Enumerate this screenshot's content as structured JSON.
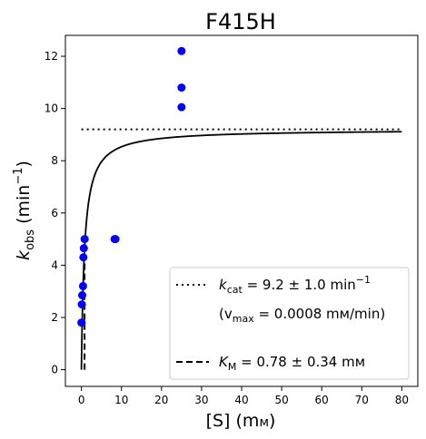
{
  "chart_data": {
    "type": "scatter",
    "title": "F415H",
    "xlabel": {
      "main": "[S] (m",
      "unit": "м",
      "close": ")"
    },
    "ylabel": {
      "main": "k",
      "sub": "obs",
      "unit": " (min",
      "sup": "−1",
      "close": ")"
    },
    "xlim": [
      -4,
      84
    ],
    "ylim": [
      -0.64,
      12.8
    ],
    "xticks": [
      0,
      10,
      20,
      30,
      40,
      50,
      60,
      70,
      80
    ],
    "yticks": [
      0,
      2,
      4,
      6,
      8,
      10,
      12
    ],
    "grid": false,
    "legend_position": "lower-right",
    "colors": {
      "points": "#0000ff",
      "fit": "#000000",
      "axis": "#000000"
    },
    "points": {
      "x": [
        0.0,
        0.05,
        0.1,
        0.2,
        0.4,
        0.5,
        0.6,
        0.8,
        8.3,
        8.5,
        25.0,
        25.0,
        25.0
      ],
      "y": [
        1.8,
        1.8,
        2.5,
        2.85,
        3.2,
        4.3,
        4.65,
        5.0,
        5.0,
        5.0,
        10.05,
        10.8,
        12.2
      ]
    },
    "fit": {
      "kcat": 9.2,
      "km": 0.78,
      "x_start": 0.0,
      "x_end": 80
    },
    "kcat_line": {
      "y": 9.2,
      "x_start": 0,
      "x_end": 80
    },
    "km_line": {
      "x": 0.78,
      "y_start": 0,
      "y_end": 4.6
    },
    "legend": {
      "kcat": {
        "sym": "k",
        "sub": "cat",
        "text": " = 9.2 ± 1.0 min",
        "sup": "−1"
      },
      "vmax": {
        "open": "(v",
        "sub": "max",
        "text": " = 0.0008 mм/min)"
      },
      "km": {
        "sym": "K",
        "sub": "M",
        "text": " = 0.78 ± 0.34 mм"
      }
    }
  }
}
